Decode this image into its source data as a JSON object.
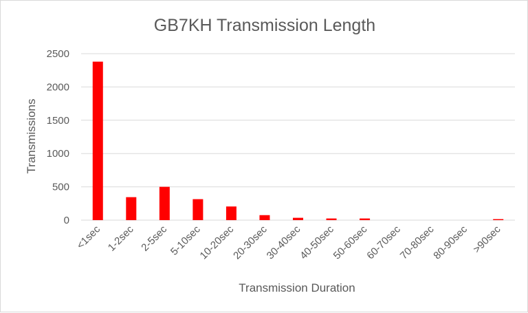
{
  "chart_data": {
    "type": "bar",
    "title": "GB7KH Transmission Length",
    "xlabel": "Transmission Duration",
    "ylabel": "Transmissions",
    "categories": [
      "<1sec",
      "1-2sec",
      "2-5sec",
      "5-10sec",
      "10-20sec",
      "20-30sec",
      "30-40sec",
      "40-50sec",
      "50-60sec",
      "60-70sec",
      "70-80sec",
      "80-90sec",
      ">90sec"
    ],
    "values": [
      2380,
      345,
      500,
      315,
      205,
      75,
      35,
      25,
      25,
      0,
      0,
      0,
      15
    ],
    "ylim": [
      0,
      2500
    ],
    "yticks": [
      0,
      500,
      1000,
      1500,
      2000,
      2500
    ],
    "grid": true,
    "legend": "none",
    "bar_color": "#ff0000"
  }
}
